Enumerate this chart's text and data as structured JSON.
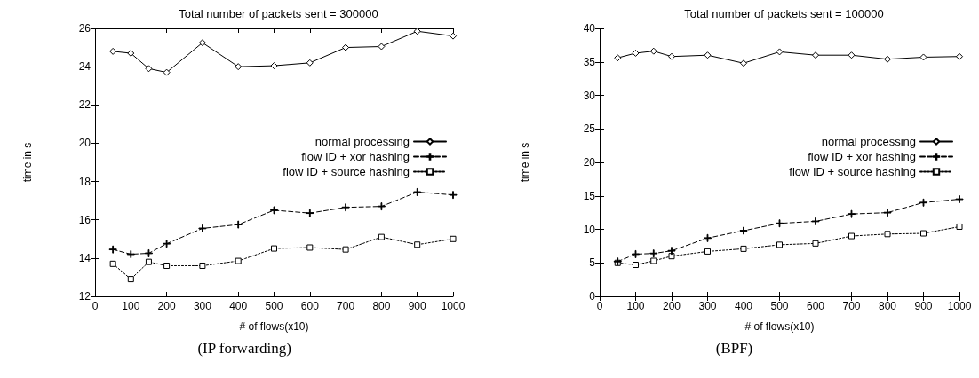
{
  "chart_data": [
    {
      "type": "line",
      "title": "Total number of packets sent = 300000",
      "xlabel": "# of flows(x10)",
      "ylabel": "time in s",
      "annotations": [
        "(IP forwarding)"
      ],
      "legend": "right",
      "grid": false,
      "xlim": [
        0,
        1000
      ],
      "xticks": [
        0,
        100,
        200,
        300,
        400,
        500,
        600,
        700,
        800,
        900,
        1000
      ],
      "ylim": [
        12,
        26
      ],
      "yticks": [
        12,
        14,
        16,
        18,
        20,
        22,
        24,
        26
      ],
      "x": [
        50,
        100,
        150,
        200,
        300,
        400,
        500,
        600,
        700,
        800,
        900,
        1000
      ],
      "series": [
        {
          "name": "normal processing",
          "color": "#000000",
          "marker": "diamond",
          "line_style": "solid",
          "values": [
            24.8,
            24.7,
            23.9,
            23.7,
            25.25,
            24.0,
            24.05,
            24.2,
            25.0,
            25.05,
            25.85,
            25.6
          ]
        },
        {
          "name": "flow ID + xor hashing",
          "color": "#000000",
          "marker": "cross",
          "line_style": "dashed",
          "values": [
            14.45,
            14.2,
            14.25,
            14.75,
            15.55,
            15.75,
            16.5,
            16.35,
            16.65,
            16.7,
            17.45,
            17.3
          ]
        },
        {
          "name": "flow ID + source hashing",
          "color": "#000000",
          "marker": "square",
          "line_style": "dotted",
          "values": [
            13.7,
            12.9,
            13.8,
            13.6,
            13.6,
            13.85,
            14.5,
            14.55,
            14.45,
            15.1,
            14.7,
            15.0
          ]
        }
      ]
    },
    {
      "type": "line",
      "title": "Total number of packets sent = 100000",
      "xlabel": "# of flows(x10)",
      "ylabel": "time in s",
      "annotations": [
        "(BPF)"
      ],
      "legend": "right",
      "grid": false,
      "xlim": [
        0,
        1000
      ],
      "xticks": [
        0,
        100,
        200,
        300,
        400,
        500,
        600,
        700,
        800,
        900,
        1000
      ],
      "ylim": [
        0,
        40
      ],
      "yticks": [
        0,
        5,
        10,
        15,
        20,
        25,
        30,
        35,
        40
      ],
      "x": [
        50,
        100,
        150,
        200,
        300,
        400,
        500,
        600,
        700,
        800,
        900,
        1000
      ],
      "series": [
        {
          "name": "normal processing",
          "color": "#000000",
          "marker": "diamond",
          "line_style": "solid",
          "values": [
            35.6,
            36.3,
            36.6,
            35.8,
            36.0,
            34.8,
            36.5,
            36.0,
            36.0,
            35.4,
            35.7,
            35.8
          ]
        },
        {
          "name": "flow ID + xor hashing",
          "color": "#000000",
          "marker": "cross",
          "line_style": "dashed",
          "values": [
            5.2,
            6.3,
            6.4,
            6.8,
            8.7,
            9.8,
            10.9,
            11.2,
            12.3,
            12.5,
            14.0,
            14.5
          ]
        },
        {
          "name": "flow ID + source hashing",
          "color": "#000000",
          "marker": "square",
          "line_style": "dotted",
          "values": [
            5.0,
            4.7,
            5.3,
            6.0,
            6.7,
            7.1,
            7.7,
            7.9,
            9.0,
            9.3,
            9.4,
            10.4
          ]
        }
      ]
    }
  ]
}
